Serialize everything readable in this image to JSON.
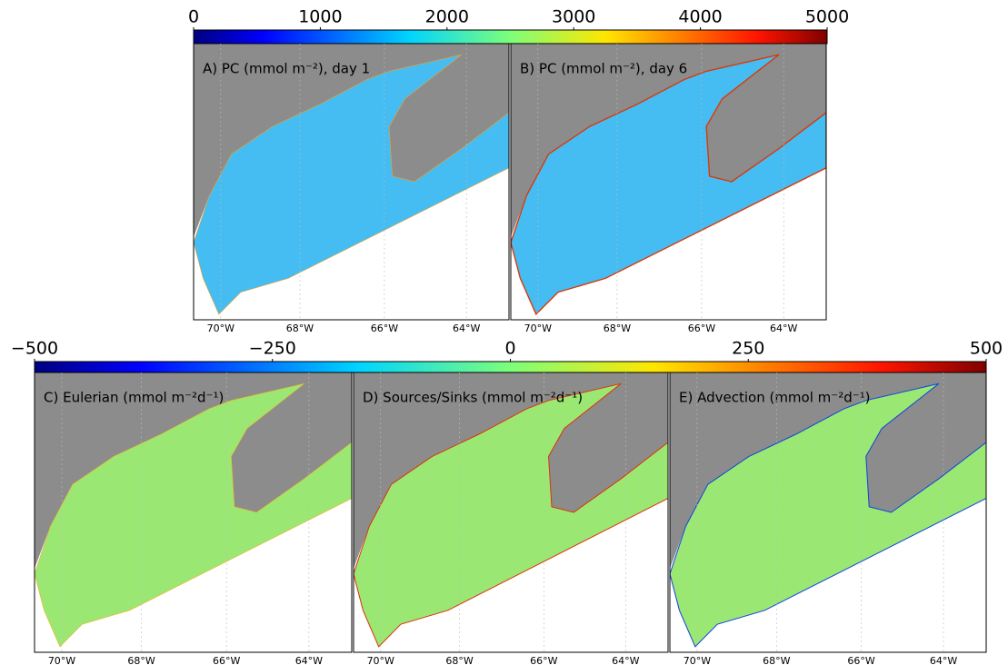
{
  "colorbars": [
    {
      "lim": [
        0,
        5000
      ],
      "ticks": [
        0,
        1000,
        2000,
        3000,
        4000,
        5000
      ]
    },
    {
      "lim": [
        -500,
        500
      ],
      "ticks": [
        {
          "value": -500,
          "label": "−500"
        },
        {
          "value": -250,
          "label": "−250"
        },
        0,
        250,
        500
      ]
    }
  ],
  "panels": [
    {
      "title": "A) PC (mmol m⁻²), day 1",
      "xticks": [
        "70°W",
        "68°W",
        "66°W",
        "64°W"
      ]
    },
    {
      "title": "B) PC (mmol m⁻²), day 6",
      "xticks": [
        "70°W",
        "68°W",
        "66°W",
        "64°W"
      ]
    },
    {
      "title": "C) Eulerian (mmol m⁻²d⁻¹)",
      "xticks": [
        "70°W",
        "68°W",
        "66°W",
        "64°W"
      ]
    },
    {
      "title": "D) Sources/Sinks (mmol m⁻²d⁻¹)",
      "xticks": [
        "70°W",
        "68°W",
        "66°W",
        "64°W"
      ]
    },
    {
      "title": "E) Advection (mmol m⁻²d⁻¹)",
      "xticks": [
        "70°W",
        "68°W",
        "66°W",
        "64°W"
      ]
    }
  ]
}
